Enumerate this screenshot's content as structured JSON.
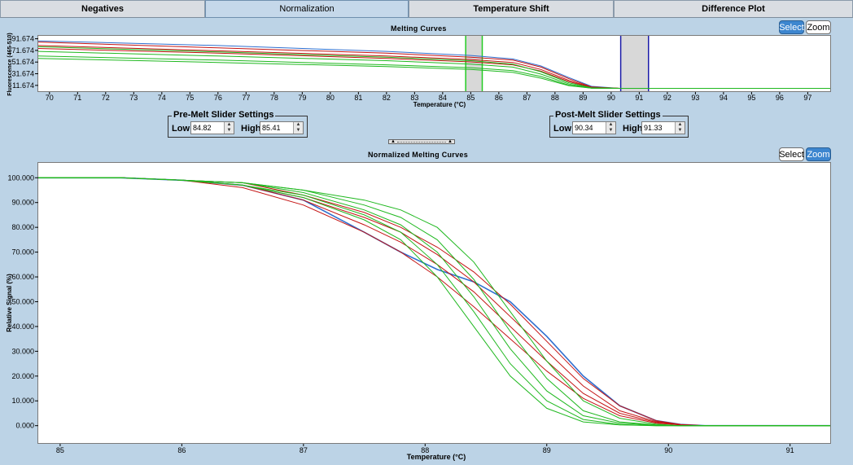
{
  "tabs": [
    {
      "label": "Negatives",
      "active": false
    },
    {
      "label": "Normalization",
      "active": true
    },
    {
      "label": "Temperature Shift",
      "active": false
    },
    {
      "label": "Difference Plot",
      "active": false
    }
  ],
  "melting": {
    "title": "Melting Curves",
    "select_label": "Select",
    "zoom_label": "Zoom",
    "active_mode": "Select",
    "ylabel": "Fluorescence (465-510)",
    "xlabel": "Temperature (°C)",
    "yticks": [
      "91.674",
      "71.674",
      "51.674",
      "31.674",
      "11.674"
    ],
    "xticks": [
      "70",
      "71",
      "72",
      "73",
      "74",
      "75",
      "76",
      "77",
      "78",
      "79",
      "80",
      "81",
      "82",
      "83",
      "84",
      "85",
      "86",
      "87",
      "88",
      "89",
      "90",
      "91",
      "92",
      "93",
      "94",
      "95",
      "96",
      "97"
    ]
  },
  "pre_melt": {
    "legend": "Pre-Melt Slider Settings",
    "low_label": "Low",
    "low_value": "84.82",
    "high_label": "High",
    "high_value": "85.41"
  },
  "post_melt": {
    "legend": "Post-Melt Slider Settings",
    "low_label": "Low",
    "low_value": "90.34",
    "high_label": "High",
    "high_value": "91.33"
  },
  "normalized": {
    "title": "Normalized Melting Curves",
    "select_label": "Select",
    "zoom_label": "Zoom",
    "active_mode": "Zoom",
    "ylabel": "Relative Signal (%)",
    "xlabel": "Temperature (°C)",
    "yticks": [
      "100.000",
      "90.000",
      "80.000",
      "70.000",
      "60.000",
      "50.000",
      "40.000",
      "30.000",
      "20.000",
      "10.000",
      "0.000"
    ],
    "xticks": [
      "85",
      "86",
      "87",
      "88",
      "89",
      "90",
      "91"
    ]
  },
  "colors": {
    "pre_melt_slider": "#22cc22",
    "post_melt_slider": "#1a1aa8",
    "series_green": "#1fb81f",
    "series_red": "#c41414",
    "series_blue": "#2f6fd0",
    "active_button": "#3d86cf"
  },
  "chart_data": [
    {
      "type": "line",
      "title": "Melting Curves",
      "xlabel": "Temperature (°C)",
      "ylabel": "Fluorescence (465-510)",
      "xlim": [
        69.6,
        97.8
      ],
      "ylim": [
        1.674,
        96.674
      ],
      "grid": false,
      "series": [
        {
          "color": "#2f6fd0",
          "x": [
            69.6,
            76,
            82,
            85,
            86.5,
            87.5,
            88.5,
            89.3,
            90.3,
            97.8
          ],
          "y": [
            88,
            80,
            70,
            63,
            57,
            45,
            25,
            10,
            6.5,
            6.5
          ]
        },
        {
          "color": "#c41414",
          "x": [
            69.6,
            76,
            82,
            85,
            86.5,
            87.5,
            88.5,
            89.3,
            90.3,
            97.8
          ],
          "y": [
            86,
            76,
            67,
            60,
            55,
            43,
            23,
            9,
            6.5,
            6.5
          ]
        },
        {
          "color": "#c41414",
          "x": [
            69.6,
            76,
            82,
            85,
            86.5,
            87.5,
            88.5,
            89.3,
            90.3,
            97.8
          ],
          "y": [
            80,
            71,
            62,
            56,
            51,
            39,
            20,
            8.5,
            6.5,
            6.5
          ]
        },
        {
          "color": "#c41414",
          "x": [
            69.6,
            76,
            82,
            85,
            86.5,
            87.5,
            88.5,
            89.3,
            90.3,
            97.8
          ],
          "y": [
            75,
            67,
            58,
            52,
            47,
            36,
            18,
            8,
            6.5,
            6.5
          ]
        },
        {
          "color": "#1fb81f",
          "x": [
            69.6,
            76,
            82,
            85,
            86.5,
            87.5,
            88.5,
            89.3,
            90.3,
            97.8
          ],
          "y": [
            78,
            69,
            60,
            54,
            48,
            35,
            16,
            7.5,
            6.5,
            6.5
          ]
        },
        {
          "color": "#1fb81f",
          "x": [
            69.6,
            76,
            82,
            85,
            86.5,
            87.5,
            88.5,
            89.3,
            90.3,
            97.8
          ],
          "y": [
            70,
            62,
            54,
            48,
            43,
            31,
            14,
            7,
            6.5,
            6.5
          ]
        },
        {
          "color": "#1fb81f",
          "x": [
            69.6,
            76,
            82,
            85,
            86.5,
            87.5,
            88.5,
            89.3,
            90.3,
            97.8
          ],
          "y": [
            62,
            55,
            47,
            42,
            37,
            27,
            12,
            7,
            6.5,
            6.5
          ]
        },
        {
          "color": "#1fb81f",
          "x": [
            69.6,
            76,
            82,
            85,
            86.5,
            87.5,
            88.5,
            89.3,
            90.3,
            97.8
          ],
          "y": [
            58,
            51,
            44,
            39,
            34,
            24,
            11,
            7,
            6.5,
            6.5
          ]
        }
      ],
      "regions": [
        {
          "name": "Pre-Melt",
          "from": 84.82,
          "to": 85.41,
          "color": "#22cc22"
        },
        {
          "name": "Post-Melt",
          "from": 90.34,
          "to": 91.33,
          "color": "#1a1aa8"
        }
      ]
    },
    {
      "type": "line",
      "title": "Normalized Melting Curves",
      "xlabel": "Temperature (°C)",
      "ylabel": "Relative Signal (%)",
      "xlim": [
        84.82,
        91.33
      ],
      "ylim": [
        -7,
        106
      ],
      "grid": false,
      "series": [
        {
          "color": "#2f6fd0",
          "x": [
            84.82,
            85.5,
            86,
            86.5,
            87,
            87.5,
            87.8,
            88.1,
            88.4,
            88.7,
            89,
            89.3,
            89.6,
            89.9,
            90.1,
            90.3,
            91.33
          ],
          "y": [
            100,
            100,
            99,
            97,
            91,
            78,
            70,
            63,
            58,
            50,
            36,
            20,
            8,
            2,
            0.5,
            0,
            0
          ]
        },
        {
          "color": "#c41414",
          "x": [
            84.82,
            85.5,
            86,
            86.5,
            87,
            87.5,
            87.8,
            88.1,
            88.4,
            88.7,
            89,
            89.3,
            89.6,
            89.9,
            90.1,
            90.3,
            91.33
          ],
          "y": [
            100,
            100,
            99,
            96,
            89,
            78,
            70,
            60,
            48,
            35,
            22,
            11,
            4,
            1,
            0.3,
            0,
            0
          ]
        },
        {
          "color": "#c41414",
          "x": [
            84.82,
            85.5,
            86,
            86.5,
            87,
            87.5,
            87.8,
            88.1,
            88.4,
            88.7,
            89,
            89.3,
            89.6,
            89.9,
            90.1,
            90.3,
            91.33
          ],
          "y": [
            100,
            100,
            99,
            97,
            91,
            81,
            74,
            65,
            54,
            40,
            26,
            13,
            5,
            1.3,
            0.3,
            0,
            0
          ]
        },
        {
          "color": "#c41414",
          "x": [
            84.82,
            85.5,
            86,
            86.5,
            87,
            87.5,
            87.8,
            88.1,
            88.4,
            88.7,
            89,
            89.3,
            89.6,
            89.9,
            90.1,
            90.3,
            91.33
          ],
          "y": [
            100,
            100,
            99,
            97,
            92,
            84,
            78,
            69,
            58,
            44,
            30,
            16,
            6,
            1.6,
            0.4,
            0,
            0
          ]
        },
        {
          "color": "#c41414",
          "x": [
            84.82,
            85.5,
            86,
            86.5,
            87,
            87.5,
            87.8,
            88.1,
            88.4,
            88.7,
            89,
            89.3,
            89.6,
            89.9,
            90.1,
            90.3,
            91.33
          ],
          "y": [
            100,
            100,
            99,
            98,
            93,
            86,
            80,
            72,
            62,
            49,
            34,
            19,
            8,
            2,
            0.5,
            0,
            0
          ]
        },
        {
          "color": "#1fb81f",
          "x": [
            84.82,
            85.5,
            86,
            86.5,
            87,
            87.5,
            87.8,
            88.1,
            88.4,
            88.7,
            89,
            89.3,
            89.6,
            89.9,
            90.1,
            90.3,
            91.33
          ],
          "y": [
            100,
            100,
            99,
            97,
            92,
            83,
            75,
            60,
            40,
            20,
            7,
            1.5,
            0.3,
            0,
            0,
            0,
            0
          ]
        },
        {
          "color": "#1fb81f",
          "x": [
            84.82,
            85.5,
            86,
            86.5,
            87,
            87.5,
            87.8,
            88.1,
            88.4,
            88.7,
            89,
            89.3,
            89.6,
            89.9,
            90.1,
            90.3,
            91.33
          ],
          "y": [
            100,
            100,
            99,
            97,
            93,
            85,
            78,
            65,
            46,
            25,
            10,
            2.5,
            0.5,
            0,
            0,
            0,
            0
          ]
        },
        {
          "color": "#1fb81f",
          "x": [
            84.82,
            85.5,
            86,
            86.5,
            87,
            87.5,
            87.8,
            88.1,
            88.4,
            88.7,
            89,
            89.3,
            89.6,
            89.9,
            90.1,
            90.3,
            91.33
          ],
          "y": [
            100,
            100,
            99,
            98,
            94,
            87,
            81,
            70,
            52,
            31,
            14,
            4,
            1,
            0.2,
            0,
            0,
            0
          ]
        },
        {
          "color": "#1fb81f",
          "x": [
            84.82,
            85.5,
            86,
            86.5,
            87,
            87.5,
            87.8,
            88.1,
            88.4,
            88.7,
            89,
            89.3,
            89.6,
            89.9,
            90.1,
            90.3,
            91.33
          ],
          "y": [
            100,
            100,
            99,
            98,
            95,
            89,
            84,
            75,
            59,
            38,
            19,
            6,
            1.5,
            0.3,
            0,
            0,
            0
          ]
        },
        {
          "color": "#1fb81f",
          "x": [
            84.82,
            85.5,
            86,
            86.5,
            87,
            87.5,
            87.8,
            88.1,
            88.4,
            88.7,
            89,
            89.3,
            89.6,
            89.9,
            90.1,
            90.3,
            91.33
          ],
          "y": [
            100,
            100,
            99,
            98,
            95,
            91,
            87,
            80,
            66,
            46,
            26,
            10,
            3,
            0.6,
            0,
            0,
            0
          ]
        }
      ]
    }
  ]
}
